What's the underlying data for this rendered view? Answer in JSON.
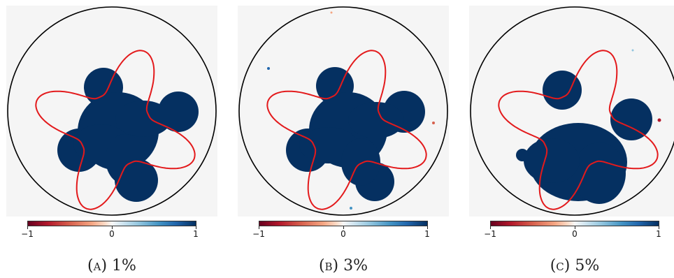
{
  "panels": [
    {
      "letter": "(a)",
      "noise": "1%"
    },
    {
      "letter": "(b)",
      "noise": "3%"
    },
    {
      "letter": "(c)",
      "noise": "5%"
    }
  ],
  "colorbar": {
    "ticks": [
      "−1",
      "0",
      "1"
    ],
    "colormap": [
      "#67001f",
      "#f7f7f7",
      "#053061"
    ]
  },
  "colors": {
    "inclusion": "#053061",
    "true_boundary": "#e31a1c",
    "domain_boundary": "#000000",
    "background": "#f5f5f5"
  }
}
